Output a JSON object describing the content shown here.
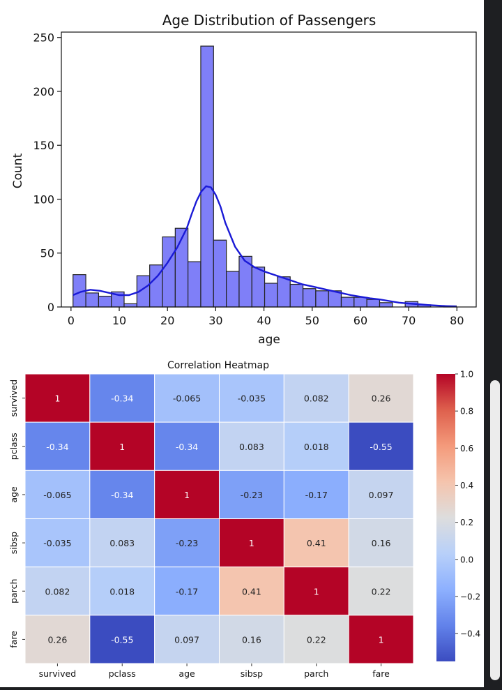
{
  "chart_data": [
    {
      "type": "bar",
      "title": "Age Distribution of Passengers",
      "xlabel": "age",
      "ylabel": "Count",
      "xlim": [
        -2,
        84
      ],
      "ylim": [
        0,
        255
      ],
      "xticks": [
        0,
        10,
        20,
        30,
        40,
        50,
        60,
        70,
        80
      ],
      "yticks": [
        0,
        50,
        100,
        150,
        200,
        250
      ],
      "bin_edges": [
        0.42,
        3.07,
        5.72,
        8.36,
        11.01,
        13.66,
        16.31,
        18.96,
        21.61,
        24.25,
        26.9,
        29.55,
        32.2,
        34.85,
        37.5,
        40.14,
        42.79,
        45.44,
        48.09,
        50.74,
        53.39,
        56.03,
        58.68,
        61.33,
        63.98,
        66.63,
        69.28,
        71.92,
        74.57,
        77.22,
        79.87
      ],
      "counts": [
        30,
        13,
        10,
        14,
        3,
        29,
        39,
        65,
        73,
        42,
        242,
        62,
        33,
        47,
        37,
        22,
        28,
        21,
        17,
        15,
        15,
        9,
        9,
        7,
        4,
        0,
        5,
        2,
        0,
        1
      ],
      "kde": {
        "x": [
          0.42,
          2,
          4,
          6,
          8,
          10,
          12,
          14,
          16,
          18,
          20,
          22,
          24,
          25,
          26,
          27,
          28,
          29,
          30,
          31,
          32,
          34,
          36,
          38,
          40,
          42,
          44,
          46,
          48,
          50,
          52,
          54,
          56,
          58,
          60,
          62,
          64,
          66,
          68,
          70,
          72,
          74,
          76,
          78,
          79.87
        ],
        "y": [
          11,
          14,
          16,
          15,
          13,
          11,
          11,
          14,
          20,
          29,
          41,
          55,
          73,
          86,
          98,
          107,
          112,
          111,
          104,
          93,
          78,
          56,
          43,
          37,
          33,
          30,
          27,
          24,
          21,
          19,
          17,
          15,
          13,
          11,
          9.5,
          8,
          7,
          5.5,
          4,
          3.2,
          2.6,
          1.8,
          1.2,
          0.8,
          0.5
        ]
      },
      "colors": {
        "bar_fill": "#7f7ff8",
        "bar_edge": "#222222",
        "kde_line": "#1a1ad6"
      },
      "grid": false
    },
    {
      "type": "heatmap",
      "title": "Correlation Heatmap",
      "labels": [
        "survived",
        "pclass",
        "age",
        "sibsp",
        "parch",
        "fare"
      ],
      "matrix": [
        [
          1,
          -0.34,
          -0.065,
          -0.035,
          0.082,
          0.26
        ],
        [
          -0.34,
          1,
          -0.34,
          0.083,
          0.018,
          -0.55
        ],
        [
          -0.065,
          -0.34,
          1,
          -0.23,
          -0.17,
          0.097
        ],
        [
          -0.035,
          0.083,
          -0.23,
          1,
          0.41,
          0.16
        ],
        [
          0.082,
          0.018,
          -0.17,
          0.41,
          1,
          0.22
        ],
        [
          0.26,
          -0.55,
          0.097,
          0.16,
          0.22,
          1
        ]
      ],
      "colormap": "coolwarm",
      "vmin": -0.55,
      "vmax": 1,
      "colorbar_ticks": [
        1.0,
        0.8,
        0.6,
        0.4,
        0.2,
        0.0,
        -0.2,
        -0.4
      ],
      "colorbar_tick_labels": [
        "1.0",
        "0.8",
        "0.6",
        "0.4",
        "0.2",
        "0.0",
        "−0.2",
        "−0.4"
      ]
    }
  ]
}
